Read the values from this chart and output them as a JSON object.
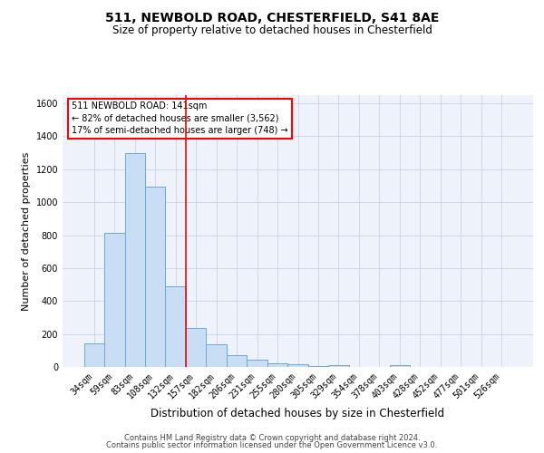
{
  "title": "511, NEWBOLD ROAD, CHESTERFIELD, S41 8AE",
  "subtitle": "Size of property relative to detached houses in Chesterfield",
  "xlabel": "Distribution of detached houses by size in Chesterfield",
  "ylabel": "Number of detached properties",
  "footer_line1": "Contains HM Land Registry data © Crown copyright and database right 2024.",
  "footer_line2": "Contains public sector information licensed under the Open Government Licence v3.0.",
  "categories": [
    "34sqm",
    "59sqm",
    "83sqm",
    "108sqm",
    "132sqm",
    "157sqm",
    "182sqm",
    "206sqm",
    "231sqm",
    "255sqm",
    "280sqm",
    "305sqm",
    "329sqm",
    "354sqm",
    "378sqm",
    "403sqm",
    "428sqm",
    "452sqm",
    "477sqm",
    "501sqm",
    "526sqm"
  ],
  "values": [
    143,
    815,
    1300,
    1095,
    490,
    235,
    140,
    73,
    43,
    22,
    14,
    5,
    12,
    0,
    0,
    10,
    0,
    0,
    0,
    0,
    0
  ],
  "bar_color": "#c9ddf5",
  "bar_edge_color": "#6aaad4",
  "grid_color": "#c8d4e8",
  "background_color": "#eef2fa",
  "red_line_x": 4.5,
  "annotation_title": "511 NEWBOLD ROAD: 141sqm",
  "annotation_line1": "← 82% of detached houses are smaller (3,562)",
  "annotation_line2": "17% of semi-detached houses are larger (748) →",
  "ylim": [
    0,
    1650
  ],
  "yticks": [
    0,
    200,
    400,
    600,
    800,
    1000,
    1200,
    1400,
    1600
  ],
  "title_fontsize": 10,
  "subtitle_fontsize": 8.5,
  "ylabel_fontsize": 8,
  "xlabel_fontsize": 8.5,
  "tick_fontsize": 7,
  "annotation_fontsize": 7,
  "footer_fontsize": 6
}
